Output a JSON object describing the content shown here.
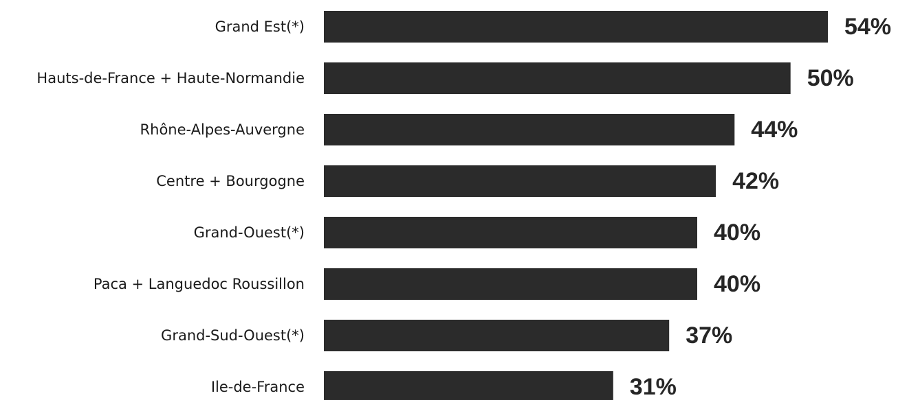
{
  "chart_data": {
    "type": "bar",
    "orientation": "horizontal",
    "categories": [
      "Grand Est(*)",
      "Hauts-de-France + Haute-Normandie",
      "Rhône-Alpes-Auvergne",
      "Centre + Bourgogne",
      "Grand-Ouest(*)",
      "Paca + Languedoc Roussillon",
      "Grand-Sud-Ouest(*)",
      "Ile-de-France"
    ],
    "values": [
      54,
      50,
      44,
      42,
      40,
      40,
      37,
      31
    ],
    "value_labels": [
      "54%",
      "50%",
      "44%",
      "42%",
      "40%",
      "40%",
      "37%",
      "31%"
    ],
    "title": "",
    "xlabel": "",
    "ylabel": "",
    "xlim": [
      0,
      54
    ],
    "grid": false,
    "legend": "none",
    "colors": {
      "bar": "#2b2b2b",
      "text": "#1a1a1a"
    }
  }
}
